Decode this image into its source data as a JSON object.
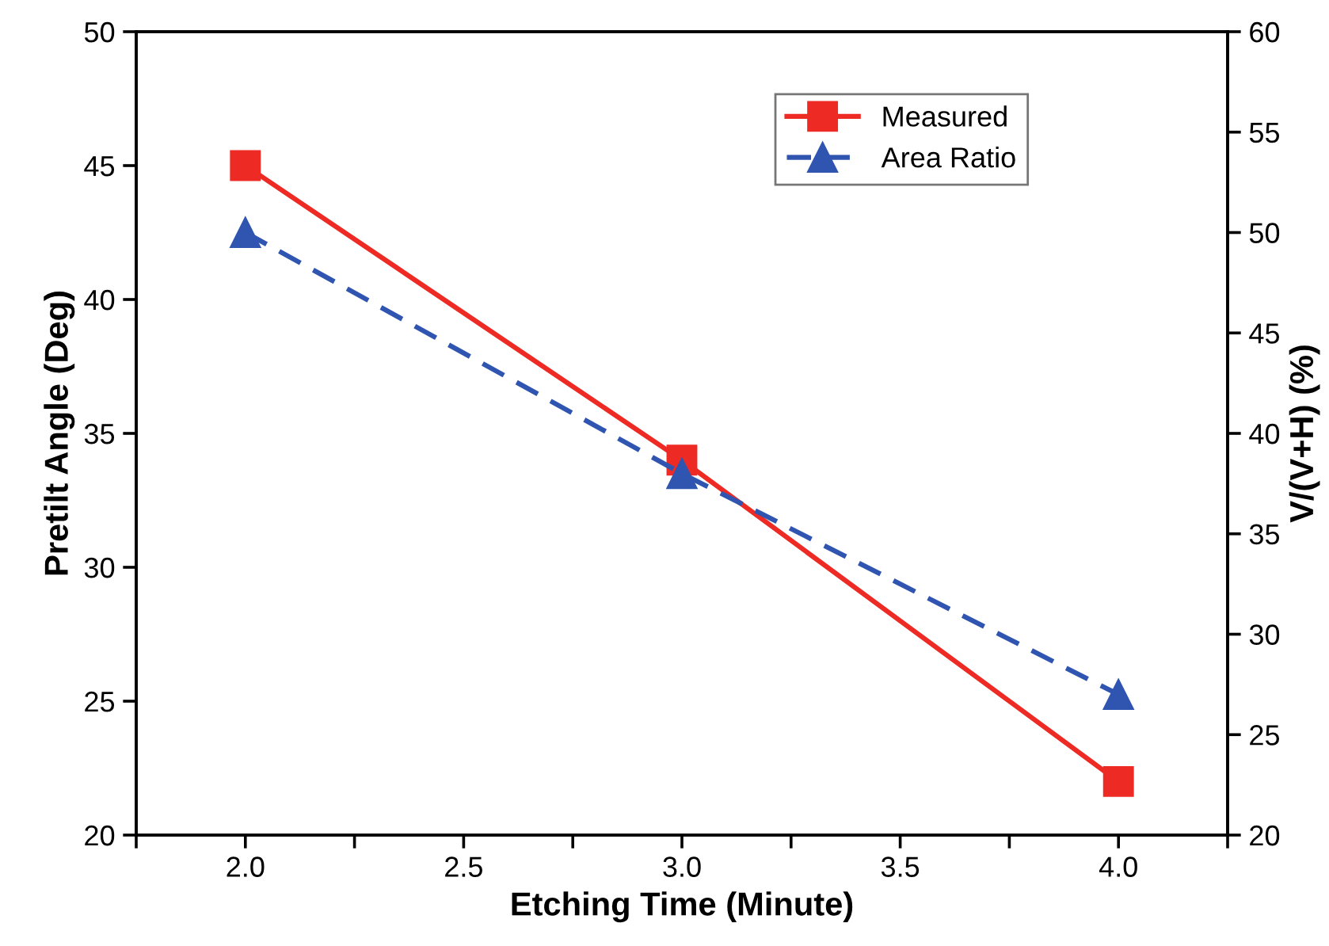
{
  "chart_data": {
    "type": "line",
    "xlabel": "Etching Time (Minute)",
    "ylabel": "Pretilt Angle (Deg)",
    "y2label": "V/(V+H) (%)",
    "x": [
      2.0,
      3.0,
      4.0
    ],
    "series": [
      {
        "name": "Measured",
        "color": "#ee2a24",
        "values": [
          45,
          34,
          22
        ],
        "marker": "square",
        "line_style": "solid"
      },
      {
        "name": "Area Ratio",
        "color": "#2f55b0",
        "values": [
          50,
          38,
          27
        ],
        "marker": "triangle",
        "line_style": "dashed",
        "axis": "y2"
      }
    ],
    "xlim": [
      1.75,
      4.25
    ],
    "xticks": [
      {
        "value": 1.75,
        "label": null
      },
      {
        "value": 2.0,
        "label": "2.0"
      },
      {
        "value": 2.25,
        "label": null
      },
      {
        "value": 2.5,
        "label": "2.5"
      },
      {
        "value": 2.75,
        "label": null
      },
      {
        "value": 3.0,
        "label": "3.0"
      },
      {
        "value": 3.25,
        "label": null
      },
      {
        "value": 3.5,
        "label": "3.5"
      },
      {
        "value": 3.75,
        "label": null
      },
      {
        "value": 4.0,
        "label": "4.0"
      },
      {
        "value": 4.25,
        "label": null
      }
    ],
    "ylim": [
      20,
      50
    ],
    "yticks": [
      20,
      25,
      30,
      35,
      40,
      45,
      50
    ],
    "y2lim": [
      20,
      60
    ],
    "y2ticks": [
      20,
      25,
      30,
      35,
      40,
      45,
      50,
      55,
      60
    ],
    "grid": false,
    "legend": "top right"
  }
}
